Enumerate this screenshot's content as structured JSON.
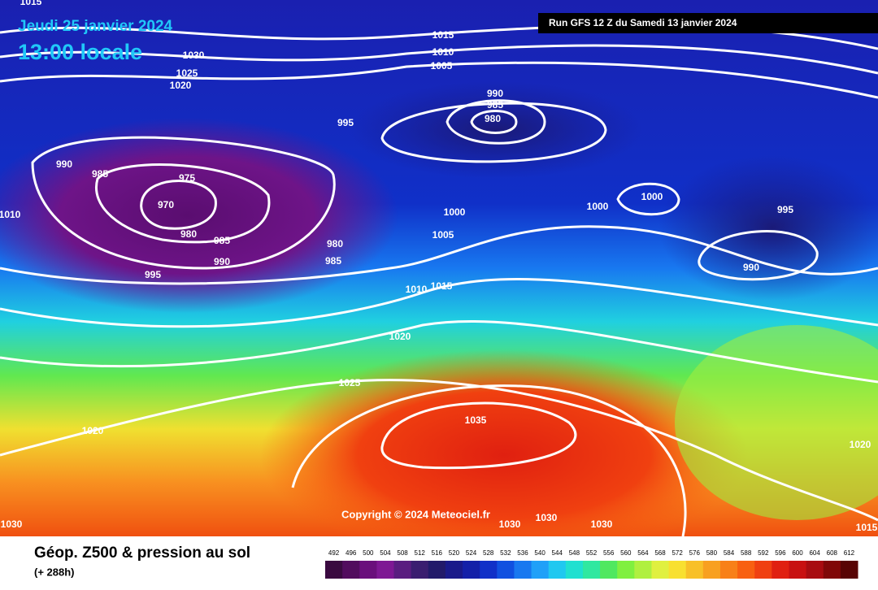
{
  "header": {
    "date": "Jeudi 25 janvier 2024",
    "time": "13:00 locale",
    "run": "Run GFS 12 Z du Samedi 13 janvier 2024"
  },
  "copyright": "Copyright © 2024 Meteociel.fr",
  "footer": {
    "title": "Géop. Z500 & pression au sol",
    "lead": "(+ 288h)"
  },
  "isobar_labels": [
    "1015",
    "1015",
    "1010",
    "1005",
    "1030",
    "1025",
    "1020",
    "995",
    "990",
    "985",
    "980",
    "990",
    "985",
    "975",
    "970",
    "980",
    "985",
    "990",
    "995",
    "1010",
    "1000",
    "1005",
    "980",
    "985",
    "1010",
    "1015",
    "1000",
    "1000",
    "995",
    "990",
    "1020",
    "1025",
    "1020",
    "1035",
    "1020",
    "1030",
    "1030",
    "1030",
    "1030",
    "1015"
  ],
  "colorbar": {
    "labels": [
      492,
      496,
      500,
      504,
      508,
      512,
      516,
      520,
      524,
      528,
      532,
      536,
      540,
      544,
      548,
      552,
      556,
      560,
      564,
      568,
      572,
      576,
      580,
      584,
      588,
      592,
      596,
      600,
      604,
      608,
      612
    ],
    "colors": [
      "#3a0a40",
      "#520c5e",
      "#6a0f7c",
      "#7e1894",
      "#5a1d80",
      "#3a1d70",
      "#221a6a",
      "#1a1a8a",
      "#1420a8",
      "#1030c8",
      "#1050e0",
      "#1878f0",
      "#20a0f8",
      "#20c8f0",
      "#20e0d0",
      "#30e8a0",
      "#50e860",
      "#80f040",
      "#b0f040",
      "#e0f040",
      "#f8e030",
      "#f8c028",
      "#f8a020",
      "#f88018",
      "#f86010",
      "#f04010",
      "#e02010",
      "#c81010",
      "#a80c10",
      "#800808",
      "#580404"
    ]
  }
}
